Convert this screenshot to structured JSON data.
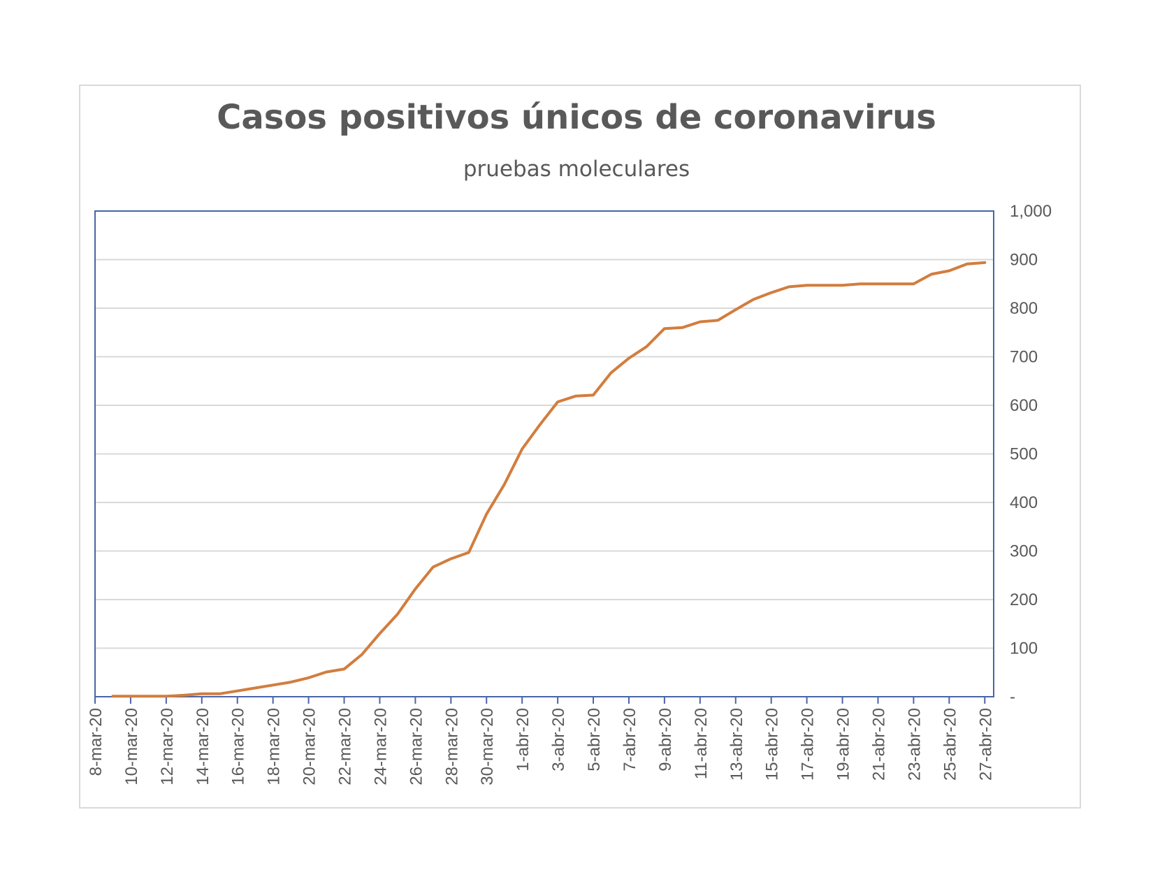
{
  "chart_data": {
    "type": "line",
    "title": "Casos positivos únicos de coronavirus",
    "subtitle": "pruebas moleculares",
    "xlabel": "",
    "ylabel": "",
    "ylim": [
      0,
      1000
    ],
    "y_axis_position": "right",
    "y_tick_labels": [
      "-",
      "100",
      "200",
      "300",
      "400",
      "500",
      "600",
      "700",
      "800",
      "900",
      "1,000"
    ],
    "y_ticks": [
      0,
      100,
      200,
      300,
      400,
      500,
      600,
      700,
      800,
      900,
      1000
    ],
    "x_tick_labels": [
      "8-mar-20",
      "10-mar-20",
      "12-mar-20",
      "14-mar-20",
      "16-mar-20",
      "18-mar-20",
      "20-mar-20",
      "22-mar-20",
      "24-mar-20",
      "26-mar-20",
      "28-mar-20",
      "30-mar-20",
      "1-abr-20",
      "3-abr-20",
      "5-abr-20",
      "7-abr-20",
      "9-abr-20",
      "11-abr-20",
      "13-abr-20",
      "15-abr-20",
      "17-abr-20",
      "19-abr-20",
      "21-abr-20",
      "23-abr-20",
      "25-abr-20",
      "27-abr-20"
    ],
    "grid": true,
    "legend": "none",
    "series": [
      {
        "color": "#D27D3E",
        "x": [
          "9-mar-20",
          "10-mar-20",
          "11-mar-20",
          "12-mar-20",
          "13-mar-20",
          "14-mar-20",
          "15-mar-20",
          "16-mar-20",
          "17-mar-20",
          "18-mar-20",
          "19-mar-20",
          "20-mar-20",
          "21-mar-20",
          "22-mar-20",
          "23-mar-20",
          "24-mar-20",
          "25-mar-20",
          "26-mar-20",
          "27-mar-20",
          "28-mar-20",
          "29-mar-20",
          "30-mar-20",
          "31-mar-20",
          "1-abr-20",
          "2-abr-20",
          "3-abr-20",
          "4-abr-20",
          "5-abr-20",
          "6-abr-20",
          "7-abr-20",
          "8-abr-20",
          "9-abr-20",
          "10-abr-20",
          "11-abr-20",
          "12-abr-20",
          "13-abr-20",
          "14-abr-20",
          "15-abr-20",
          "16-abr-20",
          "17-abr-20",
          "18-abr-20",
          "19-abr-20",
          "20-abr-20",
          "21-abr-20",
          "22-abr-20",
          "23-abr-20",
          "24-abr-20",
          "25-abr-20",
          "26-abr-20",
          "27-abr-20"
        ],
        "values": [
          1,
          1,
          1,
          1,
          3,
          6,
          6,
          12,
          18,
          24,
          30,
          39,
          51,
          57,
          87,
          130,
          170,
          222,
          267,
          284,
          297,
          376,
          437,
          510,
          560,
          607,
          619,
          621,
          667,
          697,
          721,
          758,
          760,
          772,
          775,
          797,
          818,
          832,
          844,
          847,
          847,
          847,
          850,
          850,
          850,
          850,
          870,
          877,
          891,
          894
        ]
      }
    ]
  }
}
